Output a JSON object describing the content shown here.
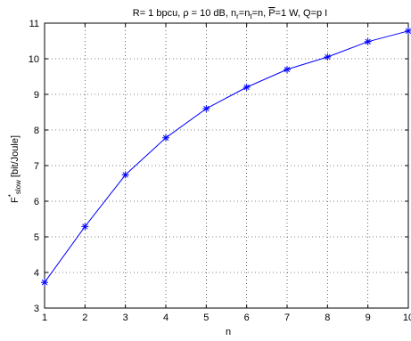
{
  "chart_data": {
    "type": "line",
    "title": "R= 1 bpcu, ρ = 10 dB, n_r=n_t=n, P=1 W, Q=p I",
    "title_parts": {
      "p1": "R= 1 bpcu, ρ = 10 dB, n",
      "sub1": "r",
      "p2": "=n",
      "sub2": "t",
      "p3": "=n, ",
      "overbar": "P",
      "p4": "=1 W, Q=p I"
    },
    "xlabel": "n",
    "ylabel": "F*_slow [bit/Joule]",
    "ylabel_parts": {
      "main": "F",
      "sup": "*",
      "sub": "slow",
      "unit": " [bit/Joule]"
    },
    "xlim": [
      1,
      10
    ],
    "ylim": [
      3,
      11
    ],
    "xticks": [
      1,
      2,
      3,
      4,
      5,
      6,
      7,
      8,
      9,
      10
    ],
    "yticks": [
      3,
      4,
      5,
      6,
      7,
      8,
      9,
      10,
      11
    ],
    "grid": true,
    "marker": "asterisk",
    "color": "#0000ff",
    "x": [
      1,
      2,
      3,
      4,
      5,
      6,
      7,
      8,
      9,
      10
    ],
    "y": [
      3.72,
      5.29,
      6.74,
      7.78,
      8.6,
      9.2,
      9.7,
      10.05,
      10.48,
      10.78
    ]
  }
}
